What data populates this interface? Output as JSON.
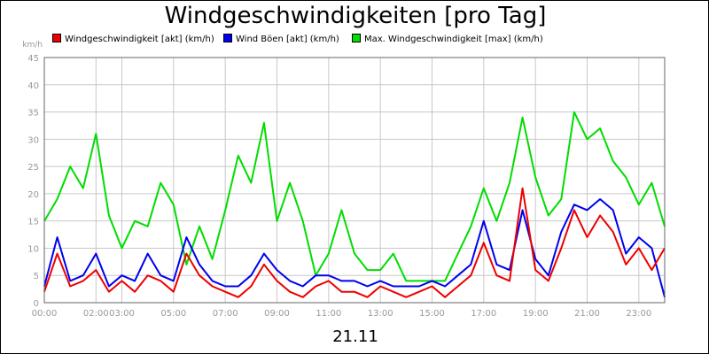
{
  "chart_data": {
    "type": "line",
    "title": "Windgeschwindigkeiten [pro Tag]",
    "ylabel": "km/h",
    "xlabel": "21.11",
    "ylim": [
      0,
      45
    ],
    "yticks": [
      0,
      5,
      10,
      15,
      20,
      25,
      30,
      35,
      40,
      45
    ],
    "xlim_hours": [
      0,
      24
    ],
    "xticks": [
      {
        "h": 0,
        "label": "00:00"
      },
      {
        "h": 2,
        "label": "02:00"
      },
      {
        "h": 3,
        "label": "03:00"
      },
      {
        "h": 5,
        "label": "05:00"
      },
      {
        "h": 7,
        "label": "07:00"
      },
      {
        "h": 9,
        "label": "09:00"
      },
      {
        "h": 11,
        "label": "11:00"
      },
      {
        "h": 13,
        "label": "13:00"
      },
      {
        "h": 15,
        "label": "15:00"
      },
      {
        "h": 17,
        "label": "17:00"
      },
      {
        "h": 19,
        "label": "19:00"
      },
      {
        "h": 21,
        "label": "21:00"
      },
      {
        "h": 23,
        "label": "23:00"
      }
    ],
    "grid": true,
    "legend_position": "top",
    "x_hours": [
      0,
      0.5,
      1,
      1.5,
      2,
      2.5,
      3,
      3.5,
      4,
      4.5,
      5,
      5.5,
      6,
      6.5,
      7,
      7.5,
      8,
      8.5,
      9,
      9.5,
      10,
      10.5,
      11,
      11.5,
      12,
      12.5,
      13,
      13.5,
      14,
      14.5,
      15,
      15.5,
      16,
      16.5,
      17,
      17.5,
      18,
      18.5,
      19,
      19.5,
      20,
      20.5,
      21,
      21.5,
      22,
      22.5,
      23,
      23.5,
      24
    ],
    "series": [
      {
        "name": "Max. Windgeschwindigkeit [max] (km/h)",
        "color": "#00dd00",
        "values": [
          15,
          19,
          25,
          21,
          31,
          16,
          10,
          15,
          14,
          22,
          18,
          7,
          14,
          8,
          17,
          27,
          22,
          33,
          15,
          22,
          15,
          5,
          9,
          17,
          9,
          6,
          6,
          9,
          4,
          4,
          4,
          4,
          9,
          14,
          21,
          15,
          22,
          34,
          23,
          16,
          19,
          35,
          30,
          32,
          26,
          23,
          18,
          22,
          14
        ]
      },
      {
        "name": "Wind Böen [akt] (km/h)",
        "color": "#0000ee",
        "values": [
          3,
          12,
          4,
          5,
          9,
          3,
          5,
          4,
          9,
          5,
          4,
          12,
          7,
          4,
          3,
          3,
          5,
          9,
          6,
          4,
          3,
          5,
          5,
          4,
          4,
          3,
          4,
          3,
          3,
          3,
          4,
          3,
          5,
          7,
          15,
          7,
          6,
          17,
          8,
          5,
          13,
          18,
          17,
          19,
          17,
          9,
          12,
          10,
          1
        ]
      },
      {
        "name": "Windgeschwindigkeit [akt] (km/h)",
        "color": "#ee0000",
        "values": [
          2,
          9,
          3,
          4,
          6,
          2,
          4,
          2,
          5,
          4,
          2,
          9,
          5,
          3,
          2,
          1,
          3,
          7,
          4,
          2,
          1,
          3,
          4,
          2,
          2,
          1,
          3,
          2,
          1,
          2,
          3,
          1,
          3,
          5,
          11,
          5,
          4,
          21,
          6,
          4,
          10,
          17,
          12,
          16,
          13,
          7,
          10,
          6,
          10
        ]
      }
    ]
  },
  "legend": [
    {
      "label": "Windgeschwindigkeit [akt] (km/h)",
      "color": "#ee0000"
    },
    {
      "label": "Wind Böen [akt] (km/h)",
      "color": "#0000ee"
    },
    {
      "label": "Max. Windgeschwindigkeit [max] (km/h)",
      "color": "#00dd00"
    }
  ]
}
